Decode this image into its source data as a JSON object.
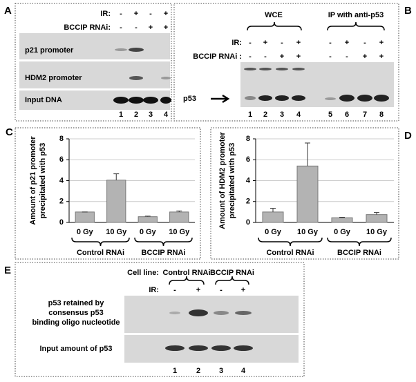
{
  "panel_a": {
    "letter": "A",
    "ir_label": "IR:",
    "ir": [
      "-",
      "+",
      "-",
      "+"
    ],
    "rnai_label": "BCCIP RNAi:",
    "rnai": [
      "-",
      "-",
      "+",
      "+"
    ],
    "rows": [
      "p21 promoter",
      "HDM2 promoter",
      "Input DNA"
    ],
    "lanes": [
      "1",
      "2",
      "3",
      "4"
    ]
  },
  "panel_b": {
    "letter": "B",
    "groups": [
      "WCE",
      "IP with anti-p53"
    ],
    "ir_label": "IR:",
    "ir": [
      "-",
      "+",
      "-",
      "+",
      "-",
      "+",
      "-",
      "+"
    ],
    "rnai_label": "BCCIP RNAi :",
    "rnai": [
      "-",
      "-",
      "+",
      "+",
      "-",
      "-",
      "+",
      "+"
    ],
    "band_label": "p53",
    "lanes": [
      "1",
      "2",
      "3",
      "4",
      "5",
      "6",
      "7",
      "8"
    ]
  },
  "panel_e": {
    "letter": "E",
    "cell_label": "Cell line:",
    "groups": [
      "Control RNAi",
      "BCCIP RNAi"
    ],
    "ir_label": "IR:",
    "ir": [
      "-",
      "+",
      "-",
      "+"
    ],
    "rows": [
      [
        "p53 retained by",
        "consensus p53",
        "binding oligo nucleotide"
      ],
      [
        "Input amount of p53"
      ]
    ],
    "lanes": [
      "1",
      "2",
      "3",
      "4"
    ]
  },
  "chart_data": [
    {
      "type": "bar",
      "letter": "C",
      "y_label": [
        "Amount of p21 promoter",
        "precipitated with p53"
      ],
      "categories": [
        "0 Gy",
        "10 Gy",
        "0 Gy",
        "10 Gy"
      ],
      "groups": [
        "Control RNAi",
        "BCCIP RNAi"
      ],
      "values": [
        1.0,
        4.05,
        0.55,
        1.0
      ],
      "errors": [
        0,
        0.6,
        0.05,
        0.1
      ],
      "color": "#b3b3b3",
      "ylim": [
        0,
        8
      ],
      "yticks": [
        0,
        2,
        4,
        6,
        8
      ],
      "grid": true
    },
    {
      "type": "bar",
      "letter": "D",
      "y_label": [
        "Amount of HDM2 promoter",
        "precipitated with p53"
      ],
      "categories": [
        "0 Gy",
        "10 Gy",
        "0 Gy",
        "10 Gy"
      ],
      "groups": [
        "Control RNAi",
        "BCCIP RNAi"
      ],
      "values": [
        1.0,
        5.4,
        0.45,
        0.75
      ],
      "errors": [
        0.35,
        2.2,
        0.05,
        0.2
      ],
      "color": "#b3b3b3",
      "ylim": [
        0,
        8
      ],
      "yticks": [
        0,
        2,
        4,
        6,
        8
      ],
      "grid": true
    }
  ]
}
